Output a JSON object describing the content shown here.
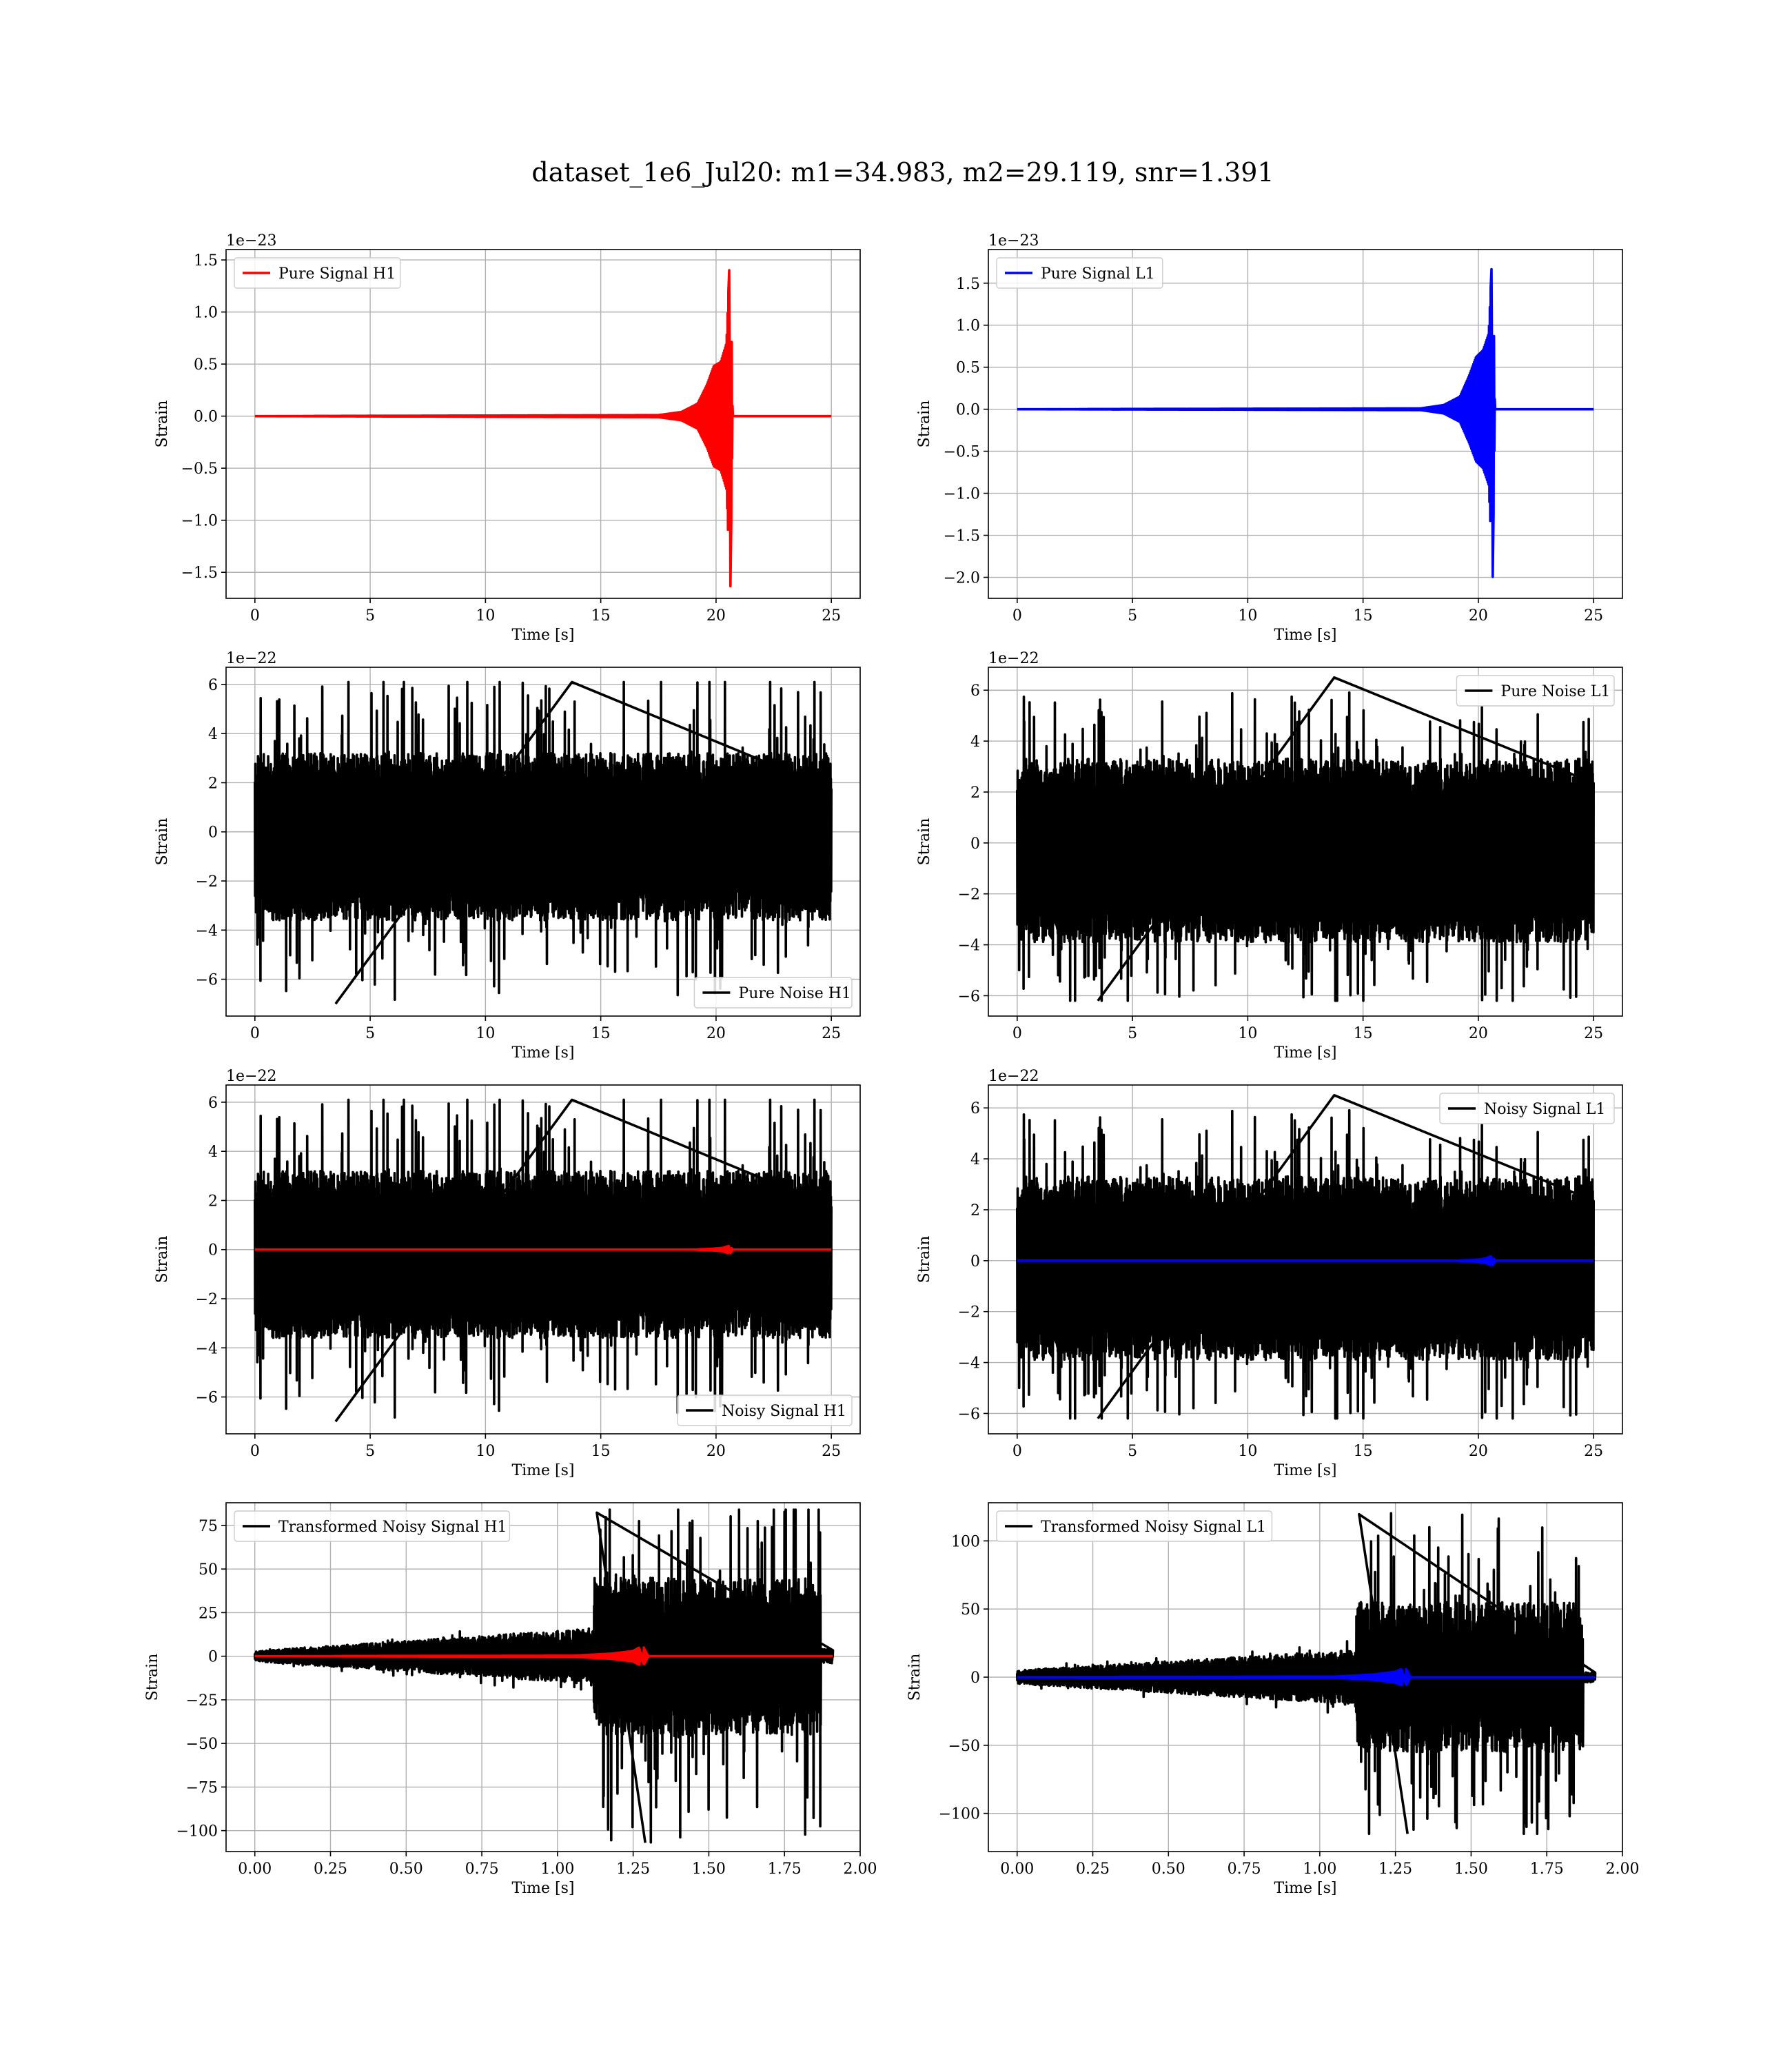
{
  "figure": {
    "title": "dataset_1e6_Jul20: m1=34.983, m2=29.119, snr=1.391"
  },
  "colors": {
    "h1_signal": "#ff0000",
    "l1_signal": "#0000ff",
    "noise": "#000000",
    "grid": "#b0b0b0"
  },
  "chart_data": [
    {
      "id": "pure-signal-h1",
      "type": "line",
      "xlabel": "Time [s]",
      "ylabel": "Strain",
      "offset_text": "1e−23",
      "xlim": [
        -1.25,
        26.25
      ],
      "ylim": [
        -1.75,
        1.6
      ],
      "xticks": [
        0,
        5,
        10,
        15,
        20,
        25
      ],
      "xtick_labels": [
        "0",
        "5",
        "10",
        "15",
        "20",
        "25"
      ],
      "yticks": [
        -1.5,
        -1.0,
        -0.5,
        0.0,
        0.5,
        1.0,
        1.5
      ],
      "ytick_labels": [
        "−1.5",
        "−1.0",
        "−0.5",
        "0.0",
        "0.5",
        "1.0",
        "1.5"
      ],
      "grid": true,
      "legend_position": "upper-left",
      "series": [
        {
          "name": "Pure Signal H1",
          "color": "#ff0000",
          "kind": "chirp",
          "x_range": [
            0,
            25
          ],
          "center": 0,
          "merger_x": 20.6,
          "envelope": [
            [
              0,
              0
            ],
            [
              17.5,
              0.01
            ],
            [
              18.5,
              0.04
            ],
            [
              19.2,
              0.12
            ],
            [
              19.6,
              0.3
            ],
            [
              19.9,
              0.48
            ],
            [
              20.2,
              0.52
            ],
            [
              20.45,
              0.7
            ],
            [
              20.58,
              1.45
            ],
            [
              20.62,
              -1.72
            ],
            [
              20.72,
              0
            ],
            [
              25,
              0
            ]
          ]
        }
      ]
    },
    {
      "id": "pure-signal-l1",
      "type": "line",
      "xlabel": "Time [s]",
      "ylabel": "Strain",
      "offset_text": "1e−23",
      "xlim": [
        -1.25,
        26.25
      ],
      "ylim": [
        -2.25,
        1.9
      ],
      "xticks": [
        0,
        5,
        10,
        15,
        20,
        25
      ],
      "xtick_labels": [
        "0",
        "5",
        "10",
        "15",
        "20",
        "25"
      ],
      "yticks": [
        -2.0,
        -1.5,
        -1.0,
        -0.5,
        0.0,
        0.5,
        1.0,
        1.5
      ],
      "ytick_labels": [
        "−2.0",
        "−1.5",
        "−1.0",
        "−0.5",
        "0.0",
        "0.5",
        "1.0",
        "1.5"
      ],
      "grid": true,
      "legend_position": "upper-left",
      "series": [
        {
          "name": "Pure Signal L1",
          "color": "#0000ff",
          "kind": "chirp",
          "x_range": [
            0,
            25
          ],
          "center": 0,
          "merger_x": 20.6,
          "envelope": [
            [
              0,
              0
            ],
            [
              17.5,
              0.01
            ],
            [
              18.5,
              0.05
            ],
            [
              19.2,
              0.15
            ],
            [
              19.6,
              0.4
            ],
            [
              19.9,
              0.62
            ],
            [
              20.2,
              0.7
            ],
            [
              20.45,
              0.9
            ],
            [
              20.58,
              1.72
            ],
            [
              20.62,
              -2.1
            ],
            [
              20.72,
              0
            ],
            [
              25,
              0
            ]
          ]
        }
      ]
    },
    {
      "id": "pure-noise-h1",
      "type": "line",
      "xlabel": "Time [s]",
      "ylabel": "Strain",
      "offset_text": "1e−22",
      "xlim": [
        -1.25,
        26.25
      ],
      "ylim": [
        -7.5,
        6.7
      ],
      "xticks": [
        0,
        5,
        10,
        15,
        20,
        25
      ],
      "xtick_labels": [
        "0",
        "5",
        "10",
        "15",
        "20",
        "25"
      ],
      "yticks": [
        -6,
        -4,
        -2,
        0,
        2,
        4,
        6
      ],
      "ytick_labels": [
        "−6",
        "−4",
        "−2",
        "0",
        "2",
        "4",
        "6"
      ],
      "grid": true,
      "legend_position": "lower-right",
      "series": [
        {
          "name": "Pure Noise H1",
          "color": "#000000",
          "kind": "noise",
          "x_range": [
            0,
            25
          ],
          "center": -0.2,
          "band": 3.4,
          "spike_max": 6.1,
          "spike_min": -7.0,
          "seed": 11
        }
      ]
    },
    {
      "id": "pure-noise-l1",
      "type": "line",
      "xlabel": "Time [s]",
      "ylabel": "Strain",
      "offset_text": "1e−22",
      "xlim": [
        -1.25,
        26.25
      ],
      "ylim": [
        -6.8,
        6.9
      ],
      "xticks": [
        0,
        5,
        10,
        15,
        20,
        25
      ],
      "xtick_labels": [
        "0",
        "5",
        "10",
        "15",
        "20",
        "25"
      ],
      "yticks": [
        -6,
        -4,
        -2,
        0,
        2,
        4,
        6
      ],
      "ytick_labels": [
        "−6",
        "−4",
        "−2",
        "0",
        "2",
        "4",
        "6"
      ],
      "grid": true,
      "legend_position": "upper-right",
      "series": [
        {
          "name": "Pure Noise L1",
          "color": "#000000",
          "kind": "noise",
          "x_range": [
            0,
            25
          ],
          "center": -0.3,
          "band": 3.6,
          "spike_max": 6.5,
          "spike_min": -6.2,
          "seed": 23
        }
      ]
    },
    {
      "id": "noisy-signal-h1",
      "type": "line",
      "xlabel": "Time [s]",
      "ylabel": "Strain",
      "offset_text": "1e−22",
      "xlim": [
        -1.25,
        26.25
      ],
      "ylim": [
        -7.5,
        6.7
      ],
      "xticks": [
        0,
        5,
        10,
        15,
        20,
        25
      ],
      "xtick_labels": [
        "0",
        "5",
        "10",
        "15",
        "20",
        "25"
      ],
      "yticks": [
        -6,
        -4,
        -2,
        0,
        2,
        4,
        6
      ],
      "ytick_labels": [
        "−6",
        "−4",
        "−2",
        "0",
        "2",
        "4",
        "6"
      ],
      "grid": true,
      "legend_position": "lower-right",
      "series": [
        {
          "name": "Noisy Signal H1",
          "color": "#000000",
          "kind": "noise",
          "x_range": [
            0,
            25
          ],
          "center": -0.2,
          "band": 3.4,
          "spike_max": 6.1,
          "spike_min": -7.0,
          "seed": 11
        },
        {
          "name": "",
          "color": "#ff0000",
          "kind": "chirp",
          "x_range": [
            0,
            25
          ],
          "center": 0,
          "merger_x": 20.6,
          "envelope": [
            [
              0,
              0
            ],
            [
              19.0,
              0
            ],
            [
              19.8,
              0.03
            ],
            [
              20.3,
              0.07
            ],
            [
              20.55,
              0.15
            ],
            [
              20.62,
              -0.15
            ],
            [
              20.72,
              0
            ],
            [
              25,
              0
            ]
          ]
        }
      ]
    },
    {
      "id": "noisy-signal-l1",
      "type": "line",
      "xlabel": "Time [s]",
      "ylabel": "Strain",
      "offset_text": "1e−22",
      "xlim": [
        -1.25,
        26.25
      ],
      "ylim": [
        -6.8,
        6.9
      ],
      "xticks": [
        0,
        5,
        10,
        15,
        20,
        25
      ],
      "xtick_labels": [
        "0",
        "5",
        "10",
        "15",
        "20",
        "25"
      ],
      "yticks": [
        -6,
        -4,
        -2,
        0,
        2,
        4,
        6
      ],
      "ytick_labels": [
        "−6",
        "−4",
        "−2",
        "0",
        "2",
        "4",
        "6"
      ],
      "grid": true,
      "legend_position": "upper-right",
      "series": [
        {
          "name": "Noisy Signal L1",
          "color": "#000000",
          "kind": "noise",
          "x_range": [
            0,
            25
          ],
          "center": -0.3,
          "band": 3.6,
          "spike_max": 6.5,
          "spike_min": -6.2,
          "seed": 23
        },
        {
          "name": "",
          "color": "#0000ff",
          "kind": "chirp",
          "x_range": [
            0,
            25
          ],
          "center": 0,
          "merger_x": 20.6,
          "envelope": [
            [
              0,
              0
            ],
            [
              19.0,
              0
            ],
            [
              19.8,
              0.03
            ],
            [
              20.3,
              0.08
            ],
            [
              20.55,
              0.18
            ],
            [
              20.62,
              -0.18
            ],
            [
              20.72,
              0
            ],
            [
              25,
              0
            ]
          ]
        }
      ]
    },
    {
      "id": "transformed-noisy-signal-h1",
      "type": "line",
      "xlabel": "Time [s]",
      "ylabel": "Strain",
      "offset_text": "",
      "xlim": [
        -0.095,
        2.0
      ],
      "ylim": [
        -112,
        88
      ],
      "xticks": [
        0.0,
        0.25,
        0.5,
        0.75,
        1.0,
        1.25,
        1.5,
        1.75,
        2.0
      ],
      "xtick_labels": [
        "0.00",
        "0.25",
        "0.50",
        "0.75",
        "1.00",
        "1.25",
        "1.50",
        "1.75",
        "2.00"
      ],
      "yticks": [
        -100,
        -75,
        -50,
        -25,
        0,
        25,
        50,
        75
      ],
      "ytick_labels": [
        "−100",
        "−75",
        "−50",
        "−25",
        "0",
        "25",
        "50",
        "75"
      ],
      "grid": true,
      "legend_position": "upper-left",
      "series": [
        {
          "name": "Transformed Noisy Signal H1",
          "color": "#000000",
          "kind": "whitened",
          "x_range": [
            0,
            1.91
          ],
          "center": 0,
          "seed": 37,
          "quiet_end": 1.12,
          "quiet_band": [
            3,
            16
          ],
          "loud_band": 45,
          "spike_max": 84,
          "spike_min": -107,
          "edge": 1.87
        },
        {
          "name": "",
          "color": "#ff0000",
          "kind": "chirp",
          "x_range": [
            0,
            1.91
          ],
          "center": 0,
          "merger_x": 1.28,
          "envelope": [
            [
              0,
              0
            ],
            [
              1.05,
              0.3
            ],
            [
              1.18,
              1.5
            ],
            [
              1.25,
              3
            ],
            [
              1.27,
              5
            ],
            [
              1.285,
              -5
            ],
            [
              1.3,
              0
            ],
            [
              1.91,
              0
            ]
          ]
        }
      ]
    },
    {
      "id": "transformed-noisy-signal-l1",
      "type": "line",
      "xlabel": "Time [s]",
      "ylabel": "Strain",
      "offset_text": "",
      "xlim": [
        -0.095,
        2.0
      ],
      "ylim": [
        -128,
        128
      ],
      "xticks": [
        0.0,
        0.25,
        0.5,
        0.75,
        1.0,
        1.25,
        1.5,
        1.75,
        2.0
      ],
      "xtick_labels": [
        "0.00",
        "0.25",
        "0.50",
        "0.75",
        "1.00",
        "1.25",
        "1.50",
        "1.75",
        "2.00"
      ],
      "yticks": [
        -100,
        -50,
        0,
        50,
        100
      ],
      "ytick_labels": [
        "−100",
        "−50",
        "0",
        "50",
        "100"
      ],
      "grid": true,
      "legend_position": "upper-left",
      "series": [
        {
          "name": "Transformed Noisy Signal L1",
          "color": "#000000",
          "kind": "whitened",
          "x_range": [
            0,
            1.91
          ],
          "center": 0,
          "seed": 53,
          "quiet_end": 1.12,
          "quiet_band": [
            5,
            20
          ],
          "loud_band": 55,
          "spike_max": 122,
          "spike_min": -115,
          "edge": 1.87
        },
        {
          "name": "",
          "color": "#0000ff",
          "kind": "chirp",
          "x_range": [
            0,
            1.91
          ],
          "center": 0,
          "merger_x": 1.28,
          "envelope": [
            [
              0,
              0
            ],
            [
              1.05,
              0.4
            ],
            [
              1.18,
              2
            ],
            [
              1.25,
              4
            ],
            [
              1.27,
              6
            ],
            [
              1.285,
              -6
            ],
            [
              1.3,
              0
            ],
            [
              1.91,
              0
            ]
          ]
        }
      ]
    }
  ]
}
